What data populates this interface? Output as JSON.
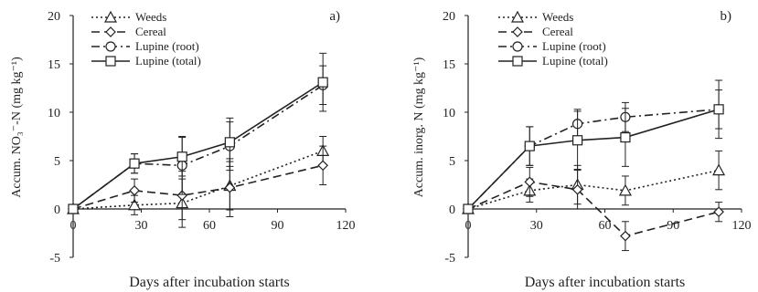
{
  "chart_data": [
    {
      "type": "line",
      "panel_label": "a)",
      "xlabel": "Days after incubation starts",
      "ylabel": "Accum. NO₃⁻-N (mg kg⁻¹)",
      "xlim": [
        0,
        120
      ],
      "ylim": [
        -5,
        20
      ],
      "xticks": [
        0,
        30,
        60,
        90,
        120
      ],
      "yticks": [
        -5,
        0,
        5,
        10,
        15,
        20
      ],
      "grid": false,
      "legend": "top-left",
      "series": [
        {
          "name": "Weeds",
          "style": "dotted",
          "marker": "triangle",
          "x": [
            0,
            27,
            48,
            69,
            110
          ],
          "y": [
            0,
            0.4,
            0.6,
            2.4,
            6.0
          ],
          "err": [
            0.2,
            1.0,
            2.5,
            2.5,
            1.5
          ]
        },
        {
          "name": "Cereal",
          "style": "dashed",
          "marker": "diamond",
          "x": [
            0,
            27,
            48,
            69,
            110
          ],
          "y": [
            0,
            1.9,
            1.4,
            2.2,
            4.5
          ],
          "err": [
            0.2,
            1.2,
            2.5,
            3.0,
            2.0
          ]
        },
        {
          "name": "Lupine (root)",
          "style": "dashdot",
          "marker": "circle",
          "x": [
            0,
            27,
            48,
            69,
            110
          ],
          "y": [
            0,
            4.7,
            4.5,
            6.5,
            12.8
          ],
          "err": [
            0.2,
            1.0,
            3.0,
            2.5,
            2.0
          ]
        },
        {
          "name": "Lupine (total)",
          "style": "solid",
          "marker": "square",
          "x": [
            0,
            27,
            48,
            69,
            110
          ],
          "y": [
            0,
            4.7,
            5.4,
            6.9,
            13.1
          ],
          "err": [
            0.2,
            1.0,
            2.0,
            2.5,
            3.0
          ]
        }
      ]
    },
    {
      "type": "line",
      "panel_label": "b)",
      "xlabel": "Days after incubation starts",
      "ylabel": "Accum. inorg. N (mg kg⁻¹)",
      "xlim": [
        0,
        120
      ],
      "ylim": [
        -5,
        20
      ],
      "xticks": [
        0,
        30,
        60,
        90,
        120
      ],
      "yticks": [
        -5,
        0,
        5,
        10,
        15,
        20
      ],
      "grid": false,
      "legend": "top-left",
      "series": [
        {
          "name": "Weeds",
          "style": "dotted",
          "marker": "triangle",
          "x": [
            0,
            27,
            48,
            69,
            110
          ],
          "y": [
            0,
            1.9,
            2.5,
            1.9,
            4.0
          ],
          "err": [
            0.2,
            1.2,
            2.0,
            1.5,
            2.0
          ]
        },
        {
          "name": "Cereal",
          "style": "dashed",
          "marker": "diamond",
          "x": [
            0,
            27,
            48,
            69,
            110
          ],
          "y": [
            0,
            2.8,
            2.0,
            -2.8,
            -0.3
          ],
          "err": [
            0.2,
            1.5,
            2.0,
            1.5,
            1.0
          ]
        },
        {
          "name": "Lupine (root)",
          "style": "dashdot",
          "marker": "circle",
          "x": [
            0,
            27,
            48,
            69,
            110
          ],
          "y": [
            0,
            6.5,
            8.8,
            9.5,
            10.3
          ],
          "err": [
            0.2,
            2.0,
            1.5,
            1.5,
            2.0
          ]
        },
        {
          "name": "Lupine (total)",
          "style": "solid",
          "marker": "square",
          "x": [
            0,
            27,
            48,
            69,
            110
          ],
          "y": [
            0,
            6.5,
            7.1,
            7.4,
            10.3
          ],
          "err": [
            0.2,
            2.0,
            3.0,
            3.0,
            3.0
          ]
        }
      ]
    }
  ]
}
